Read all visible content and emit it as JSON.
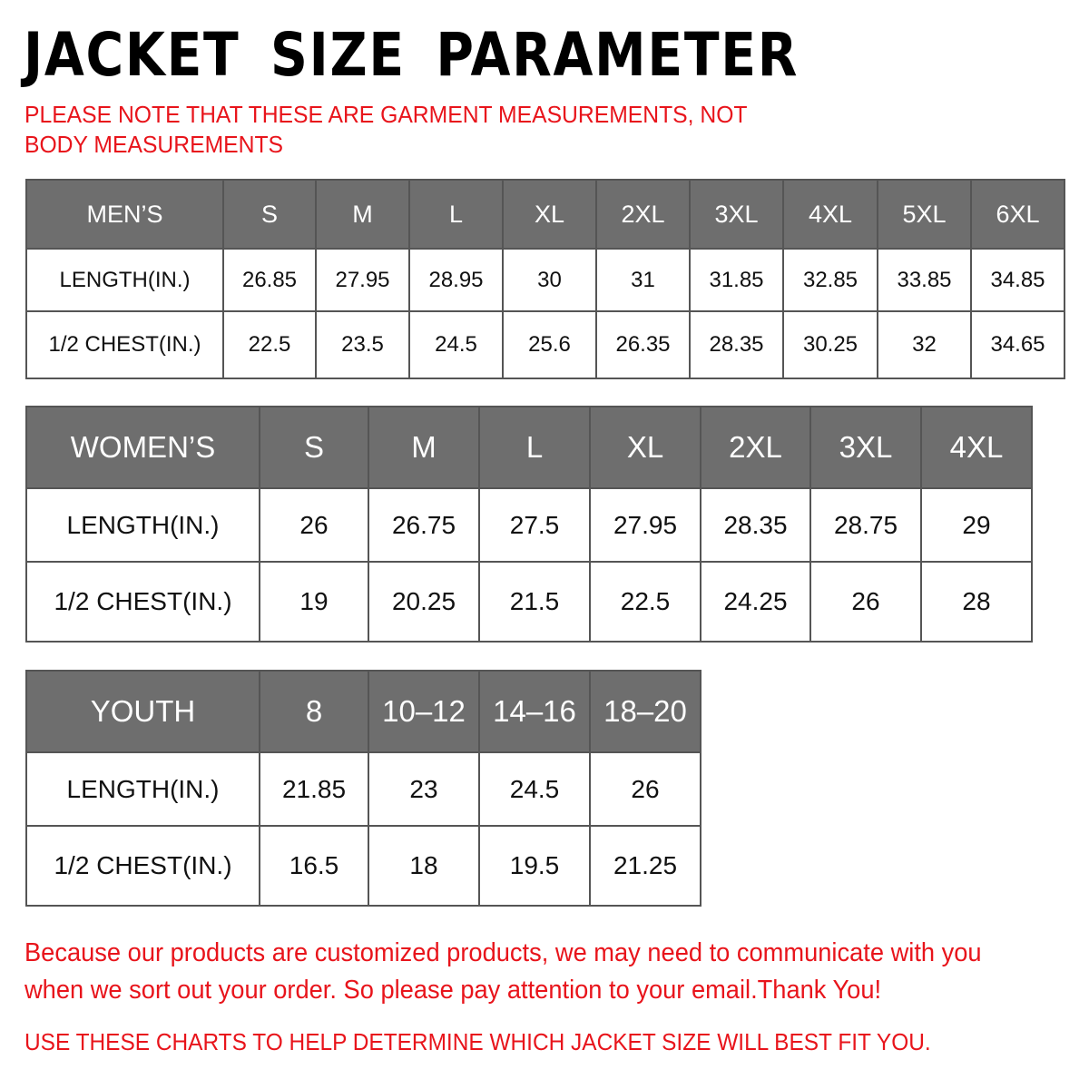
{
  "title": "JACKET  SIZE  PARAMETER",
  "note": "PLEASE NOTE THAT THESE ARE GARMENT MEASUREMENTS, NOT BODY MEASUREMENTS",
  "colors": {
    "header_bg": "#6e6e6e",
    "accent_red": "#e8141b"
  },
  "tables": {
    "men": {
      "header": [
        "MEN’S",
        "S",
        "M",
        "L",
        "XL",
        "2XL",
        "3XL",
        "4XL",
        "5XL",
        "6XL"
      ],
      "rows": [
        [
          "LENGTH(IN.)",
          "26.85",
          "27.95",
          "28.95",
          "30",
          "31",
          "31.85",
          "32.85",
          "33.85",
          "34.85"
        ],
        [
          "1/2 CHEST(IN.)",
          "22.5",
          "23.5",
          "24.5",
          "25.6",
          "26.35",
          "28.35",
          "30.25",
          "32",
          "34.65"
        ]
      ]
    },
    "women": {
      "header": [
        "WOMEN’S",
        "S",
        "M",
        "L",
        "XL",
        "2XL",
        "3XL",
        "4XL"
      ],
      "rows": [
        [
          "LENGTH(IN.)",
          "26",
          "26.75",
          "27.5",
          "27.95",
          "28.35",
          "28.75",
          "29"
        ],
        [
          "1/2 CHEST(IN.)",
          "19",
          "20.25",
          "21.5",
          "22.5",
          "24.25",
          "26",
          "28"
        ]
      ]
    },
    "youth": {
      "header": [
        "YOUTH",
        "8",
        "10–12",
        "14–16",
        "18–20"
      ],
      "rows": [
        [
          "LENGTH(IN.)",
          "21.85",
          "23",
          "24.5",
          "26"
        ],
        [
          "1/2 CHEST(IN.)",
          "16.5",
          "18",
          "19.5",
          "21.25"
        ]
      ]
    }
  },
  "footer": {
    "line1": "Because our products are customized products, we may need to communicate with you",
    "line2": "when we sort out your order. So please pay attention to your email.Thank You!",
    "line3": "USE THESE CHARTS TO HELP DETERMINE WHICH JACKET SIZE WILL BEST FIT YOU."
  }
}
